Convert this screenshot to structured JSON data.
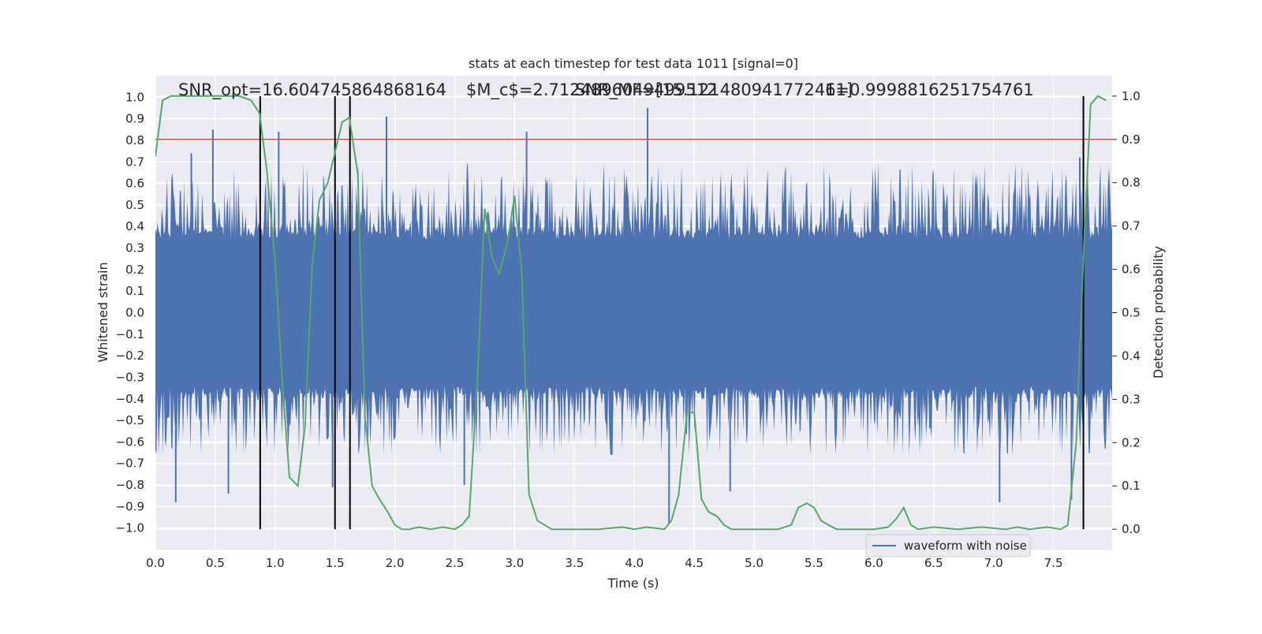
{
  "chart_data": {
    "type": "line",
    "title": "stats at each timestep for test data 1011 [signal=0]",
    "xlabel": "Time (s)",
    "ylabel": "Whitened strain",
    "y2label": "Detection probability",
    "xlim": [
      0.0,
      7.99
    ],
    "ylim": [
      -1.1,
      1.1
    ],
    "y2lim": [
      -0.047,
      1.047
    ],
    "xticks": [
      "0.0",
      "0.5",
      "1.0",
      "1.5",
      "2.0",
      "2.5",
      "3.0",
      "3.5",
      "4.0",
      "4.5",
      "5.0",
      "5.5",
      "6.0",
      "6.5",
      "7.0",
      "7.5"
    ],
    "yticks": [
      "1.0",
      "0.9",
      "0.8",
      "0.7",
      "0.6",
      "0.5",
      "0.4",
      "0.3",
      "0.2",
      "0.1",
      "0.0",
      "-0.1",
      "-0.2",
      "-0.3",
      "-0.4",
      "-0.5",
      "-0.6",
      "-0.7",
      "-0.8",
      "-0.9",
      "-1.0"
    ],
    "y2ticks": [
      "1.0",
      "0.9",
      "0.8",
      "0.7",
      "0.6",
      "0.5",
      "0.4",
      "0.3",
      "0.2",
      "0.1",
      "0.0"
    ],
    "grid": true,
    "legend": {
      "position": "bottom-right",
      "entries": [
        "waveform with noise"
      ]
    },
    "annotations": [
      "SNR_opt=16.604745864868164",
      "$M_c$=2.7124896049499512",
      "SNR_MF=[15.121480941772461]",
      "1=0.9998816251754761"
    ],
    "threshold_line": {
      "y2": 0.9,
      "color": "#c44e52"
    },
    "vertical_lines_x": [
      0.875,
      1.5,
      1.625,
      7.75
    ],
    "series": [
      {
        "name": "waveform with noise",
        "axis": "left",
        "color": "#4c72b0",
        "note_points": [
          {
            "x": 0.17,
            "y": -0.88
          },
          {
            "x": 0.3,
            "y": 0.74
          },
          {
            "x": 0.61,
            "y": -0.84
          },
          {
            "x": 0.48,
            "y": 0.85
          },
          {
            "x": 1.03,
            "y": 0.84
          },
          {
            "x": 1.48,
            "y": -0.81
          },
          {
            "x": 1.93,
            "y": 0.91
          },
          {
            "x": 2.58,
            "y": -0.8
          },
          {
            "x": 3.1,
            "y": 0.84
          },
          {
            "x": 4.11,
            "y": 0.95
          },
          {
            "x": 4.29,
            "y": -0.98
          },
          {
            "x": 4.8,
            "y": -0.83
          },
          {
            "x": 7.05,
            "y": -0.88
          },
          {
            "x": 7.65,
            "y": -0.87
          },
          {
            "x": 7.72,
            "y": 0.72
          }
        ]
      },
      {
        "name": "",
        "axis": "right",
        "color": "#55a868",
        "x": [
          0.0,
          0.06,
          0.13,
          0.3,
          0.5,
          0.7,
          0.8,
          0.87,
          0.93,
          1.0,
          1.06,
          1.12,
          1.19,
          1.25,
          1.31,
          1.37,
          1.44,
          1.5,
          1.56,
          1.62,
          1.69,
          1.75,
          1.81,
          1.87,
          1.94,
          2.0,
          2.06,
          2.12,
          2.2,
          2.3,
          2.4,
          2.5,
          2.56,
          2.62,
          2.69,
          2.75,
          2.81,
          2.87,
          2.94,
          3.0,
          3.06,
          3.12,
          3.19,
          3.25,
          3.31,
          3.37,
          3.5,
          3.7,
          3.9,
          4.0,
          4.1,
          4.25,
          4.31,
          4.37,
          4.44,
          4.5,
          4.56,
          4.62,
          4.69,
          4.75,
          4.81,
          4.87,
          5.0,
          5.2,
          5.31,
          5.37,
          5.44,
          5.5,
          5.56,
          5.62,
          5.69,
          5.75,
          6.0,
          6.12,
          6.19,
          6.25,
          6.31,
          6.37,
          6.5,
          6.7,
          6.9,
          7.1,
          7.2,
          7.3,
          7.45,
          7.56,
          7.62,
          7.69,
          7.75,
          7.81,
          7.87,
          7.94
        ],
        "values": [
          0.86,
          0.99,
          1.0,
          1.0,
          1.0,
          1.0,
          0.99,
          0.96,
          0.83,
          0.62,
          0.34,
          0.12,
          0.1,
          0.24,
          0.61,
          0.76,
          0.8,
          0.87,
          0.94,
          0.95,
          0.82,
          0.26,
          0.1,
          0.07,
          0.04,
          0.01,
          0.0,
          0.0,
          0.005,
          0.0,
          0.005,
          0.0,
          0.01,
          0.03,
          0.35,
          0.74,
          0.63,
          0.59,
          0.66,
          0.77,
          0.59,
          0.08,
          0.02,
          0.01,
          0.0,
          0.0,
          0.0,
          0.0,
          0.005,
          0.0,
          0.005,
          0.0,
          0.02,
          0.08,
          0.27,
          0.27,
          0.07,
          0.04,
          0.03,
          0.01,
          0.0,
          0.0,
          0.0,
          0.0,
          0.01,
          0.05,
          0.06,
          0.05,
          0.02,
          0.01,
          0.0,
          0.0,
          0.0,
          0.005,
          0.025,
          0.05,
          0.01,
          0.0,
          0.005,
          0.0,
          0.005,
          0.0,
          0.005,
          0.0,
          0.005,
          0.0,
          0.01,
          0.2,
          0.63,
          0.98,
          1.0,
          0.99
        ]
      }
    ]
  }
}
